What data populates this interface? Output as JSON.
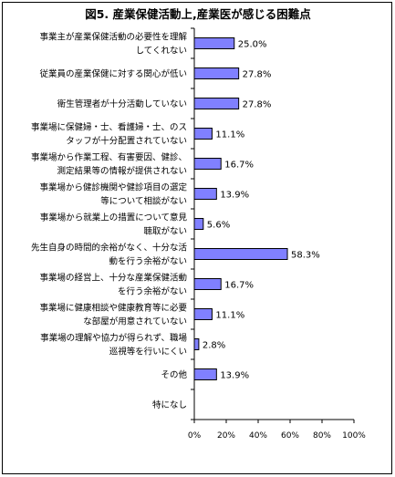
{
  "chart_data": {
    "type": "bar",
    "orientation": "horizontal",
    "title": "図5. 産業保健活動上,産業医が感じる困難点",
    "categories": [
      [
        "事業主が産業保健活動の必要性を理解",
        "してくれない"
      ],
      [
        "従業員の産業保健に対する関心が低い"
      ],
      [
        "衛生管理者が十分活動していない"
      ],
      [
        "事業場に保健婦・士、看護婦・士、のス",
        "タッフが十分配置されていない"
      ],
      [
        "事業場から作業工程、有害要因、健診、",
        "測定結果等の情報が提供されない"
      ],
      [
        "事業場から健診機関や健診項目の選定",
        "等について相談がない"
      ],
      [
        "事業場から就業上の措置について意見",
        "聴取がない"
      ],
      [
        "先生自身の時間的余裕がなく、十分な活",
        "動を行う余裕がない"
      ],
      [
        "事業場の経営上、十分な産業保健活動",
        "を行う余裕がない"
      ],
      [
        "事業場に健康相談や健康教育等に必要",
        "な部屋が用意されていない"
      ],
      [
        "事業場の理解や協力が得られず、職場",
        "巡視等を行いにくい"
      ],
      [
        "その他"
      ],
      [
        "特になし"
      ]
    ],
    "values": [
      25.0,
      27.8,
      27.8,
      11.1,
      16.7,
      13.9,
      5.6,
      58.3,
      16.7,
      11.1,
      2.8,
      13.9,
      null
    ],
    "value_labels": [
      "25.0%",
      "27.8%",
      "27.8%",
      "11.1%",
      "16.7%",
      "13.9%",
      "5.6%",
      "58.3%",
      "16.7%",
      "11.1%",
      "2.8%",
      "13.9%",
      ""
    ],
    "xlim": [
      0,
      100
    ],
    "xticks": [
      0,
      20,
      40,
      60,
      80,
      100
    ],
    "xtick_labels": [
      "0%",
      "20%",
      "40%",
      "60%",
      "80%",
      "100%"
    ],
    "xlabel": "",
    "ylabel": "",
    "grid": false,
    "legend": "none",
    "colors": {
      "bar_fill": "#8080ff",
      "bar_stroke": "#000000",
      "axis": "#000000"
    }
  }
}
